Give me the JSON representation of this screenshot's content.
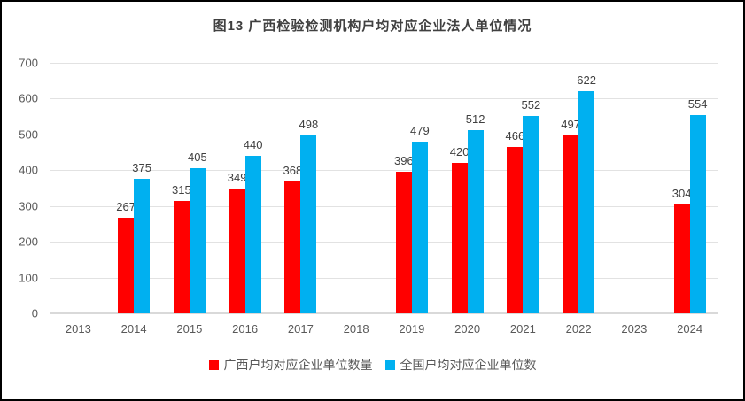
{
  "title": "图13 广西检验检测机构户均对应企业法人单位情况",
  "chart_data": {
    "type": "bar",
    "title": "图13 广西检验检测机构户均对应企业法人单位情况",
    "categories": [
      "2013",
      "2014",
      "2015",
      "2016",
      "2017",
      "2018",
      "2019",
      "2020",
      "2021",
      "2022",
      "2023",
      "2024"
    ],
    "series": [
      {
        "name": "广西户均对应企业单位数量",
        "color": "#FF0000",
        "values": [
          null,
          267,
          315,
          349,
          368,
          null,
          396,
          420,
          466,
          497,
          null,
          304
        ]
      },
      {
        "name": "全国户均对应企业单位数",
        "color": "#00B0F0",
        "values": [
          null,
          375,
          405,
          440,
          498,
          null,
          479,
          512,
          552,
          622,
          null,
          554
        ]
      }
    ],
    "xlabel": "",
    "ylabel": "",
    "ylim": [
      0,
      700
    ],
    "yticks": [
      0,
      100,
      200,
      300,
      400,
      500,
      600,
      700
    ],
    "grid": true,
    "data_labels": "outside-end",
    "legend_position": "bottom"
  },
  "colors": {
    "series_guangxi": "#FF0000",
    "series_national": "#00B0F0",
    "title_text": "#404040",
    "axis_text": "#595959",
    "data_label_text": "#404040",
    "gridline": "#E2E2E2",
    "axis_line": "#D9D9D9",
    "frame_border": "#000000"
  }
}
